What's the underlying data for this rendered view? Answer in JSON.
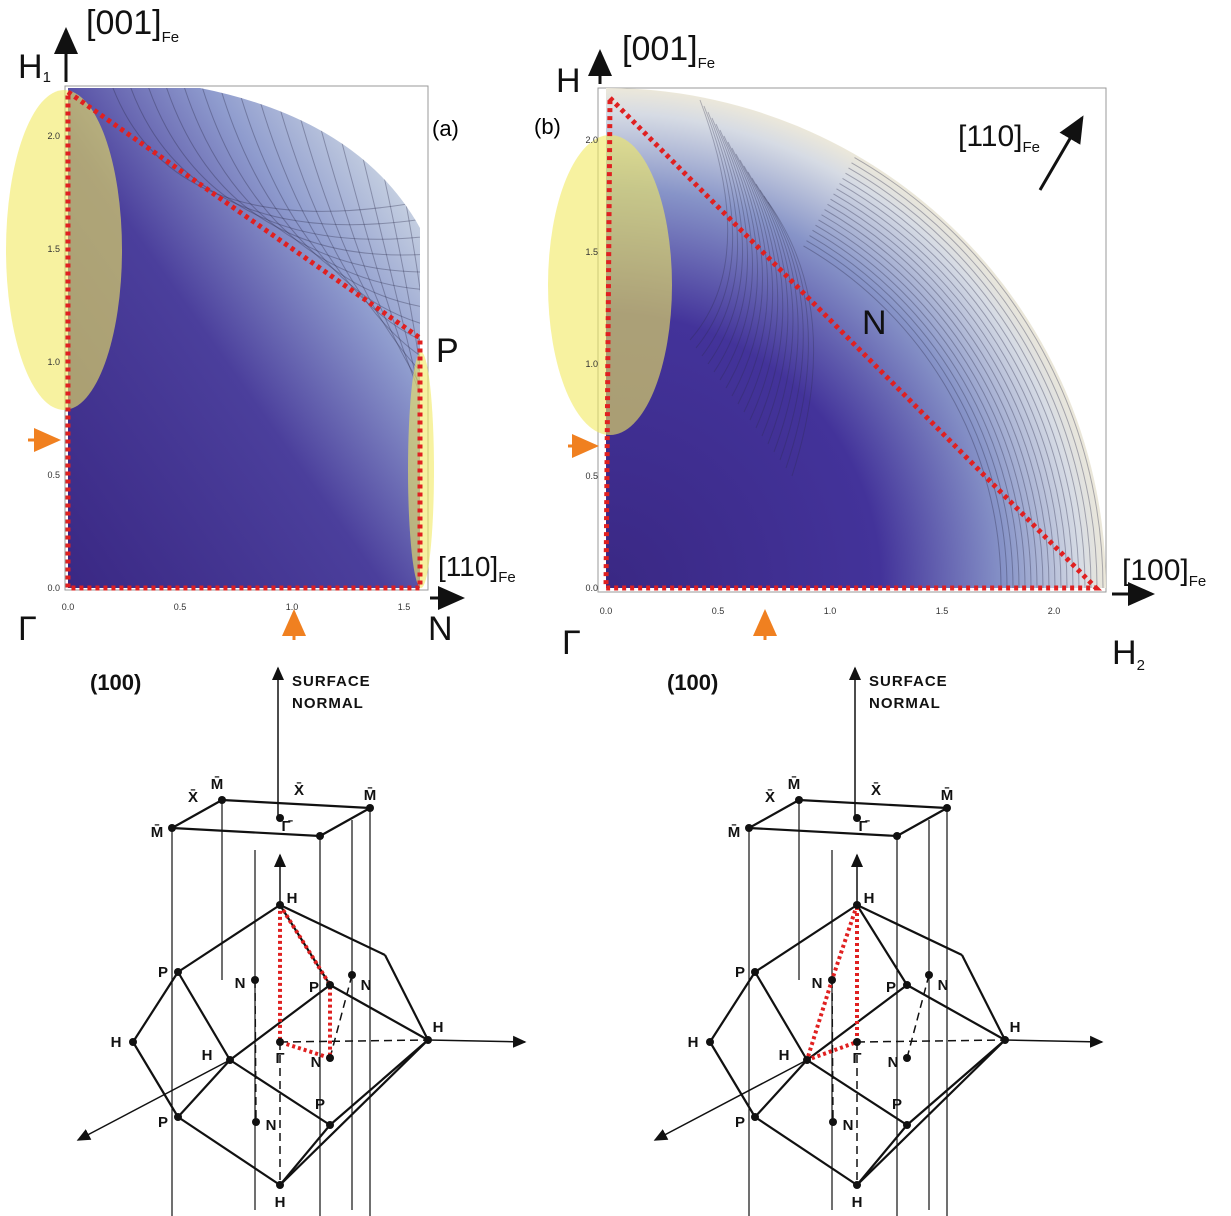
{
  "panels": [
    {
      "axis": "H",
      "axis_sub": "1",
      "top_dir": "[001]",
      "top_sub": "Fe",
      "tag": "(a)",
      "corner": "P",
      "right_dir": "[110]",
      "right_sub": "Fe",
      "origin": "Γ",
      "end": "N",
      "xticks": [
        "0.0",
        "0.5",
        "1.0",
        "1.5"
      ],
      "yticks": [
        "0.0",
        "0.5",
        "1.0",
        "1.5",
        "2.0"
      ]
    },
    {
      "axis": "H",
      "top_dir": "[001]",
      "top_sub": "Fe",
      "tag": "(b)",
      "diag_dir": "[110]",
      "diag_sub": "Fe",
      "center": "N",
      "right_dir": "[100]",
      "right_sub": "Fe",
      "origin": "Γ",
      "x_axis": "H",
      "x_axis_sub": "2",
      "xticks": [
        "0.0",
        "0.5",
        "1.0",
        "1.5",
        "2.0"
      ],
      "yticks": [
        "0.0",
        "0.5",
        "1.0",
        "1.5",
        "2.0"
      ]
    }
  ],
  "diagrams": [
    {
      "plane": "(100)",
      "normal": [
        "SURFACE",
        "NORMAL"
      ],
      "labels": [
        "M̄",
        "X̄",
        "M̄",
        "X̄",
        "M̄",
        "Γ̄",
        "H",
        "P",
        "N",
        "P",
        "N",
        "H",
        "H",
        "Γ",
        "N",
        "H",
        "P",
        "N",
        "P",
        "H"
      ]
    },
    {
      "plane": "(100)",
      "normal": [
        "SURFACE",
        "NORMAL"
      ],
      "labels": [
        "M̄",
        "X̄",
        "M̄",
        "X̄",
        "M̄",
        "Γ̄",
        "H",
        "P",
        "N",
        "P",
        "N",
        "H",
        "H",
        "Γ",
        "N",
        "H",
        "P",
        "N",
        "P",
        "H"
      ]
    }
  ]
}
